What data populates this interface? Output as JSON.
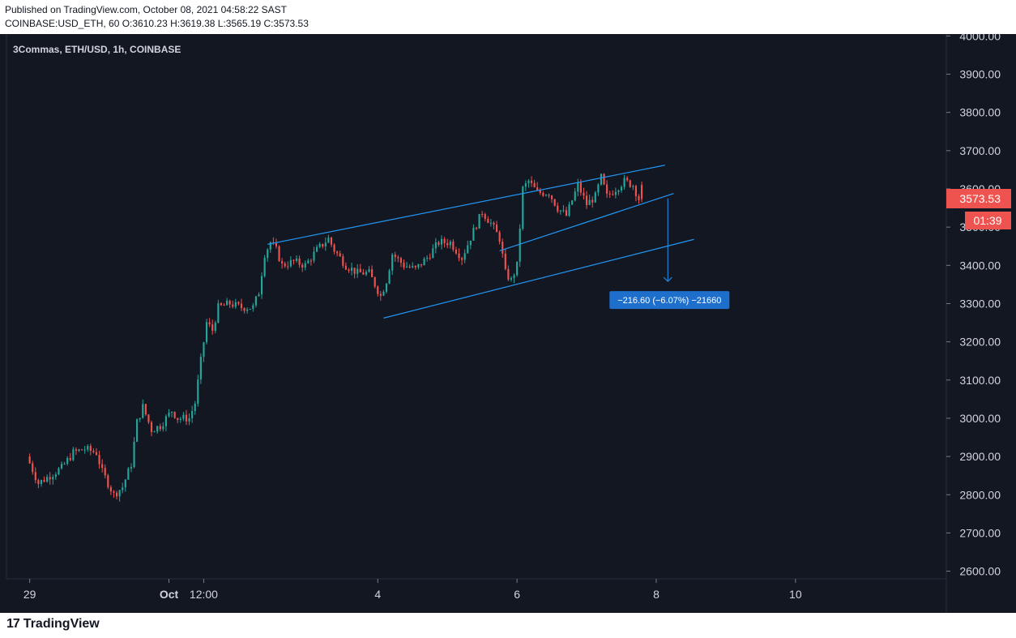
{
  "header": {
    "published": "Published on TradingView.com, October 08, 2021 04:58:22 SAST",
    "symbol_line": "COINBASE:USD_ETH, 60 O:3610.23 H:3619.38 L:3565.19 C:3573.53"
  },
  "chart_title": "3Commas, ETH/USD, 1h, COINBASE",
  "footer": {
    "logo_mark": "17",
    "logo_text": "TradingView"
  },
  "colors": {
    "background": "#131722",
    "up": "#26a69a",
    "down": "#ef5350",
    "trendline": "#2196f3",
    "label_bg": "#1e6fcc"
  },
  "chart_data": {
    "type": "candlestick",
    "title": "3Commas, ETH/USD, 1h, COINBASE",
    "y_axis": {
      "ticks": [
        "4000.00",
        "3900.00",
        "3800.00",
        "3700.00",
        "3600.00",
        "3500.00",
        "3400.00",
        "3300.00",
        "3200.00",
        "3100.00",
        "3000.00",
        "2900.00",
        "2800.00",
        "2700.00",
        "2600.00"
      ],
      "ylim": [
        2580,
        4005
      ],
      "side": "right"
    },
    "x_axis": {
      "ticks": [
        "29",
        "Oct",
        "12:00",
        "4",
        "6",
        "8",
        "10"
      ],
      "tick_hours": [
        0,
        48,
        60,
        120,
        168,
        216,
        264
      ],
      "xlim": [
        -8,
        316
      ]
    },
    "last_price": {
      "value": "3573.53",
      "countdown": "01:39"
    },
    "ohlc_current": {
      "open": 3610.23,
      "high": 3619.38,
      "low": 3565.19,
      "close": 3573.53
    },
    "close_path": [
      {
        "h": 0,
        "p": 2900
      },
      {
        "h": 4,
        "p": 2830
      },
      {
        "h": 8,
        "p": 2850
      },
      {
        "h": 12,
        "p": 2870
      },
      {
        "h": 16,
        "p": 2910
      },
      {
        "h": 20,
        "p": 2920
      },
      {
        "h": 24,
        "p": 2910
      },
      {
        "h": 26,
        "p": 2860
      },
      {
        "h": 30,
        "p": 2800
      },
      {
        "h": 33,
        "p": 2820
      },
      {
        "h": 36,
        "p": 2880
      },
      {
        "h": 38,
        "p": 2990
      },
      {
        "h": 40,
        "p": 3030
      },
      {
        "h": 43,
        "p": 2970
      },
      {
        "h": 46,
        "p": 2980
      },
      {
        "h": 50,
        "p": 3020
      },
      {
        "h": 52,
        "p": 3000
      },
      {
        "h": 56,
        "p": 3000
      },
      {
        "h": 58,
        "p": 3040
      },
      {
        "h": 60,
        "p": 3150
      },
      {
        "h": 62,
        "p": 3250
      },
      {
        "h": 64,
        "p": 3230
      },
      {
        "h": 66,
        "p": 3290
      },
      {
        "h": 70,
        "p": 3300
      },
      {
        "h": 74,
        "p": 3290
      },
      {
        "h": 78,
        "p": 3290
      },
      {
        "h": 80,
        "p": 3330
      },
      {
        "h": 82,
        "p": 3430
      },
      {
        "h": 84,
        "p": 3460
      },
      {
        "h": 86,
        "p": 3440
      },
      {
        "h": 88,
        "p": 3400
      },
      {
        "h": 92,
        "p": 3410
      },
      {
        "h": 96,
        "p": 3400
      },
      {
        "h": 100,
        "p": 3440
      },
      {
        "h": 104,
        "p": 3470
      },
      {
        "h": 106,
        "p": 3440
      },
      {
        "h": 110,
        "p": 3400
      },
      {
        "h": 114,
        "p": 3380
      },
      {
        "h": 118,
        "p": 3380
      },
      {
        "h": 120,
        "p": 3350
      },
      {
        "h": 122,
        "p": 3320
      },
      {
        "h": 124,
        "p": 3360
      },
      {
        "h": 126,
        "p": 3430
      },
      {
        "h": 130,
        "p": 3400
      },
      {
        "h": 134,
        "p": 3390
      },
      {
        "h": 138,
        "p": 3420
      },
      {
        "h": 142,
        "p": 3460
      },
      {
        "h": 146,
        "p": 3460
      },
      {
        "h": 150,
        "p": 3420
      },
      {
        "h": 154,
        "p": 3490
      },
      {
        "h": 157,
        "p": 3540
      },
      {
        "h": 160,
        "p": 3510
      },
      {
        "h": 163,
        "p": 3470
      },
      {
        "h": 165,
        "p": 3380
      },
      {
        "h": 167,
        "p": 3360
      },
      {
        "h": 169,
        "p": 3400
      },
      {
        "h": 171,
        "p": 3600
      },
      {
        "h": 173,
        "p": 3620
      },
      {
        "h": 176,
        "p": 3590
      },
      {
        "h": 180,
        "p": 3590
      },
      {
        "h": 183,
        "p": 3550
      },
      {
        "h": 186,
        "p": 3530
      },
      {
        "h": 188,
        "p": 3570
      },
      {
        "h": 190,
        "p": 3610
      },
      {
        "h": 193,
        "p": 3560
      },
      {
        "h": 196,
        "p": 3580
      },
      {
        "h": 198,
        "p": 3630
      },
      {
        "h": 200,
        "p": 3580
      },
      {
        "h": 203,
        "p": 3600
      },
      {
        "h": 206,
        "p": 3620
      },
      {
        "h": 209,
        "p": 3610
      },
      {
        "h": 211,
        "p": 3573.53
      }
    ],
    "trendlines": [
      {
        "name": "upper-channel-line",
        "from": {
          "h": 82,
          "p": 3455
        },
        "to": {
          "h": 219,
          "p": 3662
        }
      },
      {
        "name": "wedge-lower-line",
        "from": {
          "h": 162,
          "p": 3438
        },
        "to": {
          "h": 222,
          "p": 3588
        }
      },
      {
        "name": "lower-channel-line",
        "from": {
          "h": 122,
          "p": 3262
        },
        "to": {
          "h": 229,
          "p": 3468
        }
      }
    ],
    "measure": {
      "from": {
        "h": 220,
        "p": 3575
      },
      "to": {
        "h": 220,
        "p": 3358
      },
      "label": "−216.60 (−6.07%) −21660"
    }
  }
}
